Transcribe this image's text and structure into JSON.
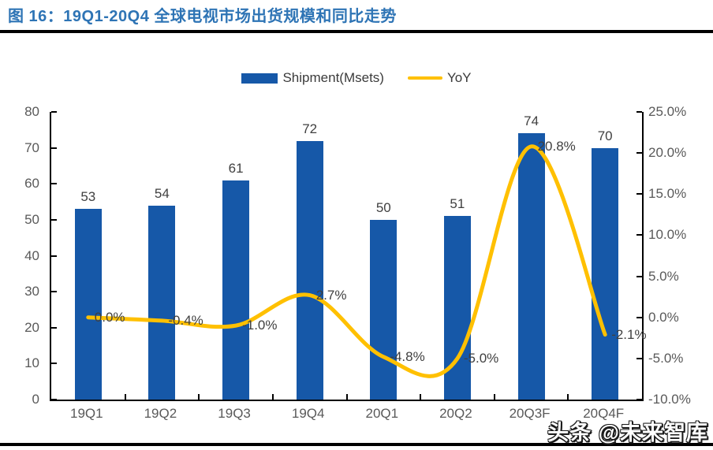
{
  "title": "图 16：19Q1-20Q4 全球电视市场出货规模和同比走势",
  "legend": {
    "shipment_label": "Shipment(Msets)",
    "yoy_label": "YoY"
  },
  "watermark": "头条 @未来智库",
  "colors": {
    "bar": "#1658A8",
    "line": "#FFC000",
    "title": "#2E74B5",
    "axis_tick_label": "#595959",
    "data_label": "#404040",
    "axis_line": "#000000"
  },
  "chart_data": {
    "type": "bar",
    "subtype": "combo-bar-smooth-line",
    "title": "19Q1-20Q4 全球电视市场出货规模和同比走势",
    "categories": [
      "19Q1",
      "19Q2",
      "19Q3",
      "19Q4",
      "20Q1",
      "20Q2",
      "20Q3F",
      "20Q4F"
    ],
    "series": [
      {
        "name": "Shipment(Msets)",
        "type": "bar",
        "axis": "left",
        "values": [
          53,
          54,
          61,
          72,
          50,
          51,
          74,
          70
        ],
        "labels": [
          "53",
          "54",
          "61",
          "72",
          "50",
          "51",
          "74",
          "70"
        ]
      },
      {
        "name": "YoY",
        "type": "line",
        "axis": "right",
        "values": [
          0.0,
          -0.4,
          -1.0,
          2.7,
          -4.8,
          -5.0,
          20.8,
          -2.1
        ],
        "labels": [
          "0.0%",
          "-0.4%",
          "-1.0%",
          "2.7%",
          "-4.8%",
          "-5.0%",
          "20.8%",
          "-2.1%"
        ]
      }
    ],
    "left_axis": {
      "min": 0,
      "max": 80,
      "tick_values": [
        0,
        10,
        20,
        30,
        40,
        50,
        60,
        70,
        80
      ],
      "tick_labels": [
        "0",
        "10",
        "20",
        "30",
        "40",
        "50",
        "60",
        "70",
        "80"
      ]
    },
    "right_axis": {
      "min": -10,
      "max": 25,
      "tick_values": [
        -10,
        -5,
        0,
        5,
        10,
        15,
        20,
        25
      ],
      "tick_labels": [
        "-10.0%",
        "-5.0%",
        "0.0%",
        "5.0%",
        "10.0%",
        "15.0%",
        "20.0%",
        "25.0%"
      ]
    },
    "legend_position": "top",
    "grid": false
  }
}
